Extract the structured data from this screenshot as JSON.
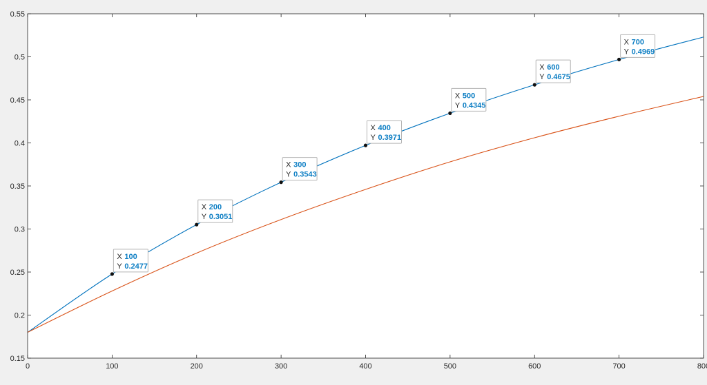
{
  "colors": {
    "figure_background": "#f0f0f0",
    "axes_background": "#ffffff",
    "axis_color": "#262626",
    "series_1": "#0072bd",
    "series_2": "#d95319",
    "datatip_value": "#0e7fc4"
  },
  "chart_data": {
    "type": "line",
    "title": "",
    "xlabel": "",
    "ylabel": "",
    "xlim": [
      0,
      800
    ],
    "ylim": [
      0.15,
      0.55
    ],
    "grid": false,
    "x_ticks": [
      0,
      100,
      200,
      300,
      400,
      500,
      600,
      700,
      800
    ],
    "y_ticks": [
      0.15,
      0.2,
      0.25,
      0.3,
      0.35,
      0.4,
      0.45,
      0.5,
      0.55
    ],
    "x_tick_labels": [
      "0",
      "100",
      "200",
      "300",
      "400",
      "500",
      "600",
      "700",
      "800"
    ],
    "y_tick_labels": [
      "0.15",
      "0.2",
      "0.25",
      "0.3",
      "0.35",
      "0.4",
      "0.45",
      "0.5",
      "0.55"
    ],
    "series": [
      {
        "color": "#0072bd",
        "x": [
          0,
          100,
          200,
          300,
          400,
          500,
          600,
          700,
          800
        ],
        "y": [
          0.18,
          0.2477,
          0.3051,
          0.3543,
          0.3971,
          0.4345,
          0.4675,
          0.4969,
          0.523
        ]
      },
      {
        "color": "#d95319",
        "x": [
          0,
          100,
          200,
          300,
          400,
          500,
          600,
          700,
          800
        ],
        "y": [
          0.18,
          0.228,
          0.272,
          0.311,
          0.346,
          0.378,
          0.406,
          0.431,
          0.454
        ]
      }
    ],
    "data_tips": [
      {
        "x_key": "X",
        "y_key": "Y",
        "x_label": "100",
        "y_label": "0.2477",
        "x": 100,
        "y": 0.2477
      },
      {
        "x_key": "X",
        "y_key": "Y",
        "x_label": "200",
        "y_label": "0.3051",
        "x": 200,
        "y": 0.3051
      },
      {
        "x_key": "X",
        "y_key": "Y",
        "x_label": "300",
        "y_label": "0.3543",
        "x": 300,
        "y": 0.3543
      },
      {
        "x_key": "X",
        "y_key": "Y",
        "x_label": "400",
        "y_label": "0.3971",
        "x": 400,
        "y": 0.3971
      },
      {
        "x_key": "X",
        "y_key": "Y",
        "x_label": "500",
        "y_label": "0.4345",
        "x": 500,
        "y": 0.4345
      },
      {
        "x_key": "X",
        "y_key": "Y",
        "x_label": "600",
        "y_label": "0.4675",
        "x": 600,
        "y": 0.4675
      },
      {
        "x_key": "X",
        "y_key": "Y",
        "x_label": "700",
        "y_label": "0.4969",
        "x": 700,
        "y": 0.4969
      }
    ]
  }
}
